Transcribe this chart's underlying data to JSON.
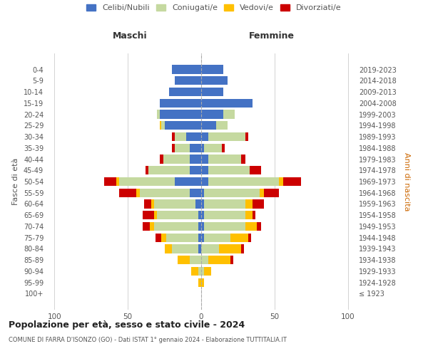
{
  "age_groups": [
    "100+",
    "95-99",
    "90-94",
    "85-89",
    "80-84",
    "75-79",
    "70-74",
    "65-69",
    "60-64",
    "55-59",
    "50-54",
    "45-49",
    "40-44",
    "35-39",
    "30-34",
    "25-29",
    "20-24",
    "15-19",
    "10-14",
    "5-9",
    "0-4"
  ],
  "birth_years": [
    "≤ 1923",
    "1924-1928",
    "1929-1933",
    "1934-1938",
    "1939-1943",
    "1944-1948",
    "1949-1953",
    "1954-1958",
    "1959-1963",
    "1964-1968",
    "1969-1973",
    "1974-1978",
    "1979-1983",
    "1984-1988",
    "1989-1993",
    "1994-1998",
    "1999-2003",
    "2004-2008",
    "2009-2013",
    "2014-2018",
    "2019-2023"
  ],
  "males": {
    "celibi": [
      0,
      0,
      0,
      0,
      2,
      2,
      2,
      2,
      4,
      8,
      18,
      8,
      8,
      8,
      10,
      25,
      28,
      28,
      22,
      18,
      20
    ],
    "coniugati": [
      0,
      0,
      2,
      8,
      18,
      22,
      30,
      28,
      28,
      34,
      38,
      28,
      18,
      10,
      8,
      2,
      2,
      0,
      0,
      0,
      0
    ],
    "vedovi": [
      0,
      2,
      5,
      8,
      5,
      3,
      3,
      2,
      2,
      2,
      2,
      0,
      0,
      0,
      0,
      1,
      0,
      0,
      0,
      0,
      0
    ],
    "divorziati": [
      0,
      0,
      0,
      0,
      0,
      4,
      5,
      8,
      5,
      12,
      8,
      2,
      2,
      2,
      2,
      0,
      0,
      0,
      0,
      0,
      0
    ]
  },
  "females": {
    "nubili": [
      0,
      0,
      0,
      0,
      0,
      2,
      2,
      2,
      2,
      2,
      5,
      5,
      5,
      2,
      5,
      10,
      15,
      35,
      15,
      18,
      15
    ],
    "coniugate": [
      0,
      0,
      2,
      5,
      12,
      18,
      28,
      28,
      28,
      38,
      48,
      28,
      22,
      12,
      25,
      8,
      8,
      0,
      0,
      0,
      0
    ],
    "vedove": [
      0,
      2,
      5,
      15,
      15,
      12,
      8,
      5,
      5,
      3,
      3,
      0,
      0,
      0,
      0,
      0,
      0,
      0,
      0,
      0,
      0
    ],
    "divorziate": [
      0,
      0,
      0,
      2,
      2,
      2,
      3,
      2,
      8,
      10,
      12,
      8,
      3,
      2,
      2,
      0,
      0,
      0,
      0,
      0,
      0
    ]
  },
  "colors": {
    "celibi_nubili": "#4472c4",
    "coniugati": "#c5d9a0",
    "vedovi": "#ffc000",
    "divorziati": "#cc0000"
  },
  "xlim": [
    -105,
    105
  ],
  "xticks": [
    -100,
    -50,
    0,
    50,
    100
  ],
  "xticklabels": [
    "100",
    "50",
    "0",
    "50",
    "100"
  ],
  "title": "Popolazione per età, sesso e stato civile - 2024",
  "subtitle": "COMUNE DI FARRA D'ISONZO (GO) - Dati ISTAT 1° gennaio 2024 - Elaborazione TUTTITALIA.IT",
  "ylabel_left": "Fasce di età",
  "ylabel_right": "Anni di nascita",
  "label_maschi": "Maschi",
  "label_femmine": "Femmine",
  "legend_labels": [
    "Celibi/Nubili",
    "Coniugati/e",
    "Vedovi/e",
    "Divorziati/e"
  ],
  "background_color": "#ffffff",
  "grid_color": "#cccccc"
}
